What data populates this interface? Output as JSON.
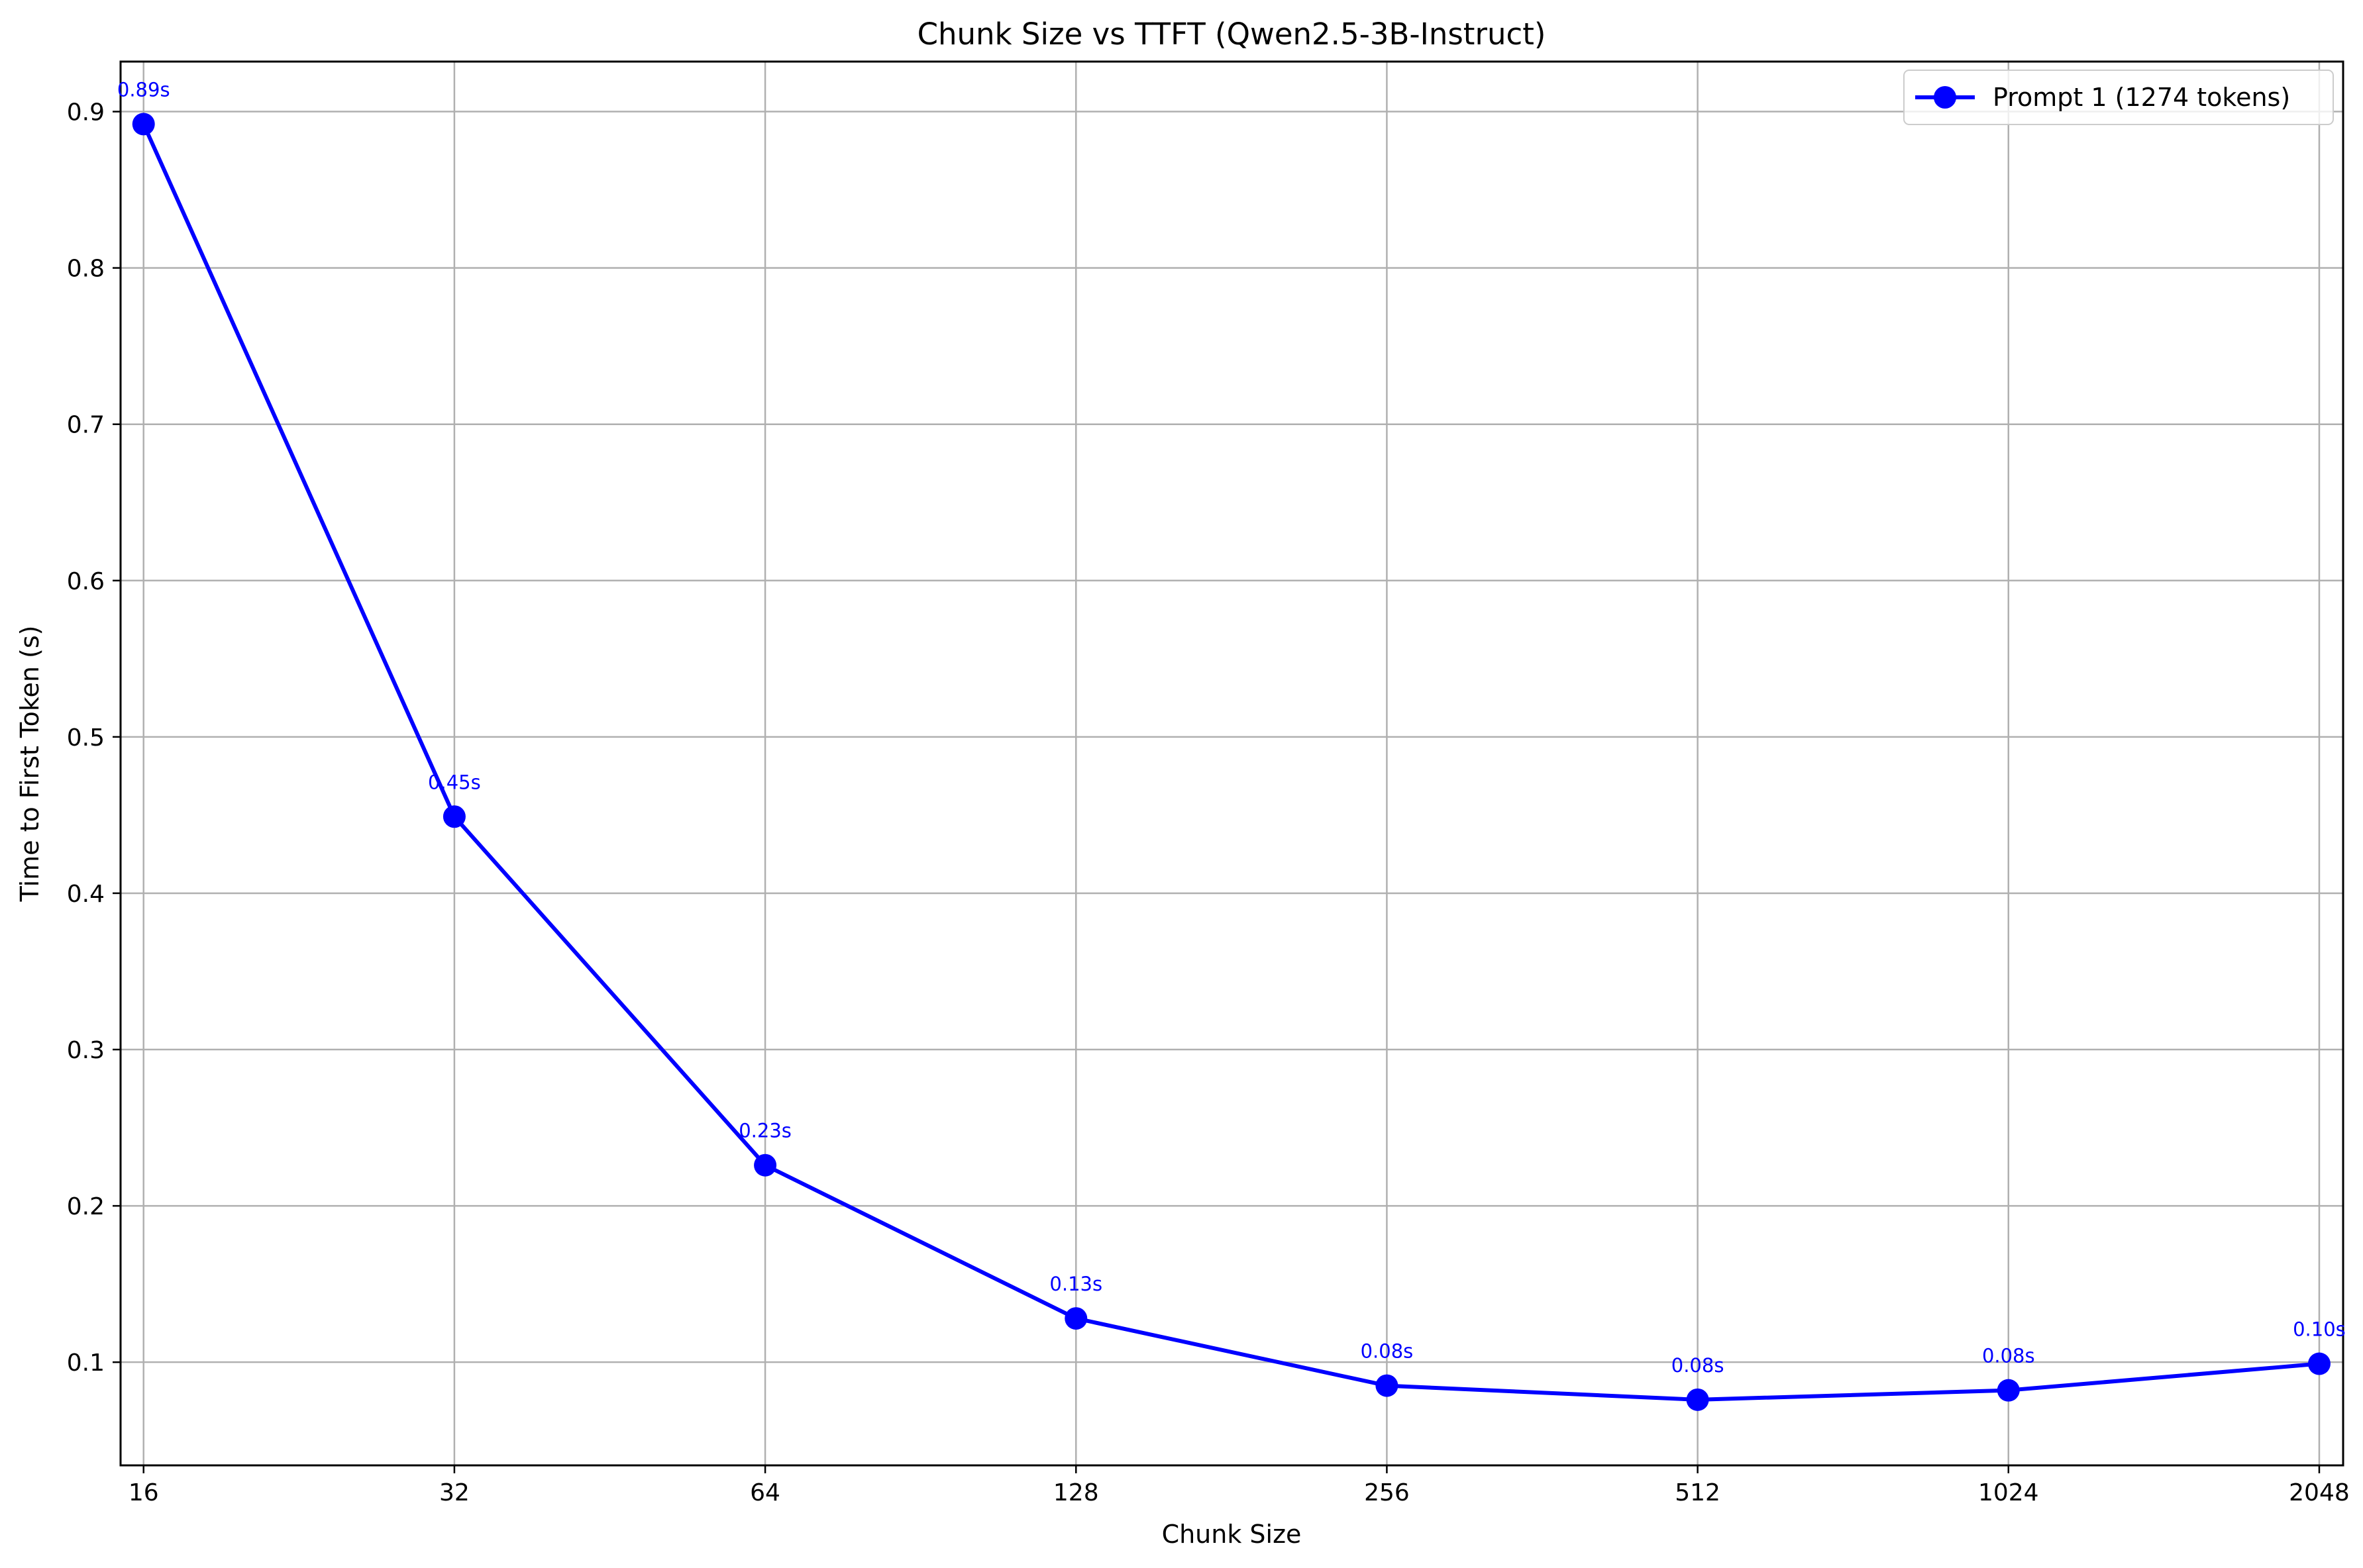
{
  "chart_data": {
    "type": "line",
    "title": "Chunk Size vs TTFT (Qwen2.5-3B-Instruct)",
    "xlabel": "Chunk Size",
    "ylabel": "Time to First Token (s)",
    "x_scale": "log2",
    "categories": [
      "16",
      "32",
      "64",
      "128",
      "256",
      "512",
      "1024",
      "2048"
    ],
    "x": [
      16,
      32,
      64,
      128,
      256,
      512,
      1024,
      2048
    ],
    "y_ticks": [
      "0.1",
      "0.2",
      "0.3",
      "0.4",
      "0.5",
      "0.6",
      "0.7",
      "0.8",
      "0.9"
    ],
    "y_tick_values": [
      0.1,
      0.2,
      0.3,
      0.4,
      0.5,
      0.6,
      0.7,
      0.8,
      0.9
    ],
    "ylim": [
      0.034,
      0.932
    ],
    "xlim": [
      15.2,
      2160
    ],
    "grid": true,
    "legend_position": "top-right",
    "series": [
      {
        "name": "Prompt 1 (1274 tokens)",
        "color": "#0000ff",
        "marker": "circle",
        "values": [
          0.892,
          0.449,
          0.226,
          0.128,
          0.085,
          0.076,
          0.082,
          0.099
        ],
        "data_labels": [
          "0.89s",
          "0.45s",
          "0.23s",
          "0.13s",
          "0.08s",
          "0.08s",
          "0.08s",
          "0.10s"
        ]
      }
    ]
  }
}
